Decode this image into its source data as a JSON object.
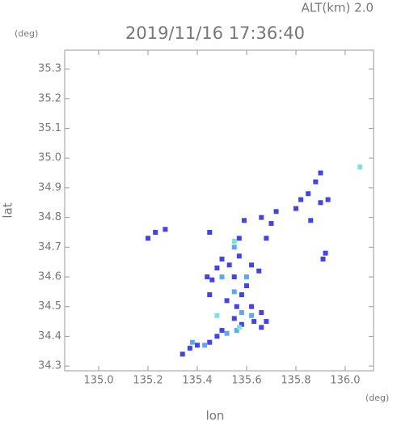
{
  "chart_data": {
    "type": "scatter",
    "title": "2019/11/16 17:36:40",
    "subtitle": "ALT(km) 2.0",
    "y_unit": "(deg)",
    "x_unit": "(deg)",
    "xlabel": "lon",
    "ylabel": "lat",
    "xlim": [
      134.862,
      136.115
    ],
    "ylim": [
      34.284,
      35.363
    ],
    "xticks": [
      {
        "value": 135,
        "label": "135.0"
      },
      135.2,
      135.4,
      135.6,
      135.8,
      {
        "value": 136,
        "label": "136.0"
      }
    ],
    "yticks": [
      34.3,
      34.4,
      34.5,
      34.6,
      34.7,
      34.8,
      34.9,
      {
        "value": 35,
        "label": "35.0"
      },
      35.1,
      35.2,
      35.3
    ],
    "series": [
      {
        "color": "#4444e6",
        "x": [
          135.9,
          135.88,
          135.85,
          135.93,
          135.9,
          135.82,
          135.8,
          135.72,
          135.7,
          135.68,
          135.59,
          135.57,
          135.45,
          135.27,
          135.23,
          135.2,
          135.92,
          135.91,
          135.86,
          135.66,
          135.5,
          135.53,
          135.57,
          135.62,
          135.65,
          135.48,
          135.46,
          135.55,
          135.6,
          135.58,
          135.52,
          135.56,
          135.62,
          135.66,
          135.68,
          135.63,
          135.58,
          135.55,
          135.5,
          135.45,
          135.4,
          135.37,
          135.34,
          135.44,
          135.45,
          135.66,
          135.48
        ],
        "values": [
          34.95,
          34.92,
          34.88,
          34.86,
          34.85,
          34.86,
          34.83,
          34.82,
          34.78,
          34.73,
          34.79,
          34.73,
          34.75,
          34.76,
          34.75,
          34.73,
          34.68,
          34.66,
          34.79,
          34.8,
          34.66,
          34.64,
          34.67,
          34.64,
          34.62,
          34.63,
          34.59,
          34.6,
          34.57,
          34.54,
          34.52,
          34.5,
          34.5,
          34.48,
          34.45,
          34.45,
          34.44,
          34.46,
          34.42,
          34.38,
          34.37,
          34.36,
          34.34,
          34.6,
          34.54,
          34.43,
          34.4
        ]
      },
      {
        "color": "#5fa8f0",
        "x": [
          135.55,
          135.58,
          135.56,
          135.52,
          135.6,
          135.43,
          135.38,
          135.5,
          135.55,
          135.62
        ],
        "values": [
          34.55,
          34.48,
          34.42,
          34.41,
          34.6,
          34.37,
          34.38,
          34.6,
          34.7,
          34.47
        ]
      },
      {
        "color": "#7fe0e0",
        "x": [
          136.06,
          135.55,
          135.48,
          135.57
        ],
        "values": [
          34.97,
          34.72,
          34.47,
          34.43
        ]
      }
    ]
  }
}
